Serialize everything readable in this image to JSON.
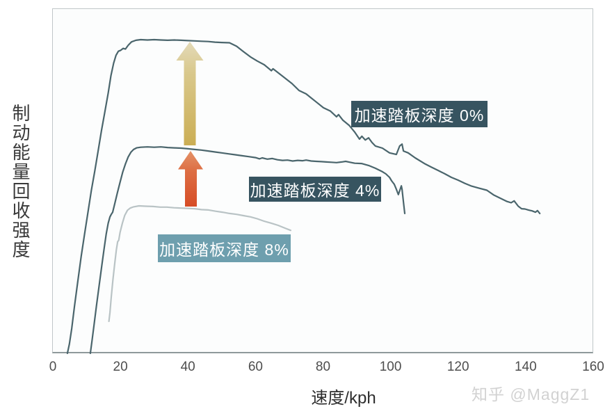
{
  "watermark": "知乎 @MaggZ1",
  "colors": {
    "curve_dark": "#4a656c",
    "curve_light": "#b9c3c5",
    "annotation_dark_bg": "#375460",
    "annotation_light_bg": "#6e9fae",
    "annotation_text": "#ffffff",
    "gold_arrow_top": "#e3dab8",
    "gold_arrow_bottom": "#cbae54",
    "orange_arrow_top": "#e49268",
    "orange_arrow_bottom": "#d64c26",
    "plot_border": "#c0c6c8",
    "axis_line": "#8f999b",
    "tick_text": "#4e4e4e",
    "axis_label_text": "#3a3a3a",
    "watermark_text": "#d2d2d2"
  },
  "chart_data": {
    "type": "line",
    "title": "",
    "xlabel": "速度/kph",
    "ylabel": "制动能量回收强度",
    "xlim": [
      0,
      160
    ],
    "x_ticks": [
      0,
      20,
      40,
      60,
      80,
      100,
      120,
      140,
      160
    ],
    "y_axis_note": "unlabeled relative intensity, 0-100",
    "grid": false,
    "legend_position": "inline annotation boxes on plot",
    "annotations": [
      {
        "label": "加速踏板深度 0%",
        "series": "pedal-0"
      },
      {
        "label": "加速踏板深度 4%",
        "series": "pedal-4"
      },
      {
        "label": "加速踏板深度 8%",
        "series": "pedal-8"
      }
    ],
    "arrows": [
      {
        "name": "gold-up-arrow",
        "from_series": "pedal-4",
        "to_series": "pedal-0",
        "at_speed_kph": 40
      },
      {
        "name": "orange-up-arrow",
        "from_series": "pedal-8",
        "to_series": "pedal-4",
        "at_speed_kph": 41
      }
    ],
    "series": [
      {
        "id": "pedal-0",
        "name": "加速踏板深度 0%",
        "color": "#4a656c",
        "points": [
          [
            4.3,
            0
          ],
          [
            4.9,
            3
          ],
          [
            5.6,
            8
          ],
          [
            6.4,
            15
          ],
          [
            7.4,
            23
          ],
          [
            8.4,
            31
          ],
          [
            9.4,
            38
          ],
          [
            10.4,
            45
          ],
          [
            11.4,
            52
          ],
          [
            12.4,
            58
          ],
          [
            13.4,
            64.5
          ],
          [
            14.4,
            71
          ],
          [
            15.4,
            77
          ],
          [
            16.4,
            83
          ],
          [
            17.2,
            88.5
          ],
          [
            18,
            92.5
          ],
          [
            18.7,
            95
          ],
          [
            19.4,
            96.3
          ],
          [
            20.1,
            96.6
          ],
          [
            20.8,
            97.2
          ],
          [
            21.5,
            97
          ],
          [
            22.3,
            98.2
          ],
          [
            23.3,
            99.3
          ],
          [
            24.6,
            99.8
          ],
          [
            26,
            100
          ],
          [
            28,
            99.9
          ],
          [
            30,
            100
          ],
          [
            32,
            99.9
          ],
          [
            34,
            99.8
          ],
          [
            36,
            99.9
          ],
          [
            38,
            99.8
          ],
          [
            40,
            99.7
          ],
          [
            42,
            99.6
          ],
          [
            44,
            99.5
          ],
          [
            46,
            99.4
          ],
          [
            48,
            99.2
          ],
          [
            50,
            99.1
          ],
          [
            52.3,
            99
          ],
          [
            54.4,
            97.9
          ],
          [
            56.4,
            96.2
          ],
          [
            58.5,
            94.5
          ],
          [
            60.5,
            93.2
          ],
          [
            62.6,
            92
          ],
          [
            64.7,
            90.1
          ],
          [
            65.2,
            90.7
          ],
          [
            67.7,
            88.6
          ],
          [
            70.8,
            86
          ],
          [
            72.9,
            83.8
          ],
          [
            75,
            82.7
          ],
          [
            76.5,
            81.4
          ],
          [
            78,
            80.1
          ],
          [
            80.1,
            78.3
          ],
          [
            82.2,
            77.2
          ],
          [
            84,
            75.4
          ],
          [
            84.6,
            76.1
          ],
          [
            85.9,
            74.3
          ],
          [
            87.7,
            72.7
          ],
          [
            89.4,
            70.5
          ],
          [
            90.8,
            68.3
          ],
          [
            91.5,
            69.2
          ],
          [
            92.5,
            68
          ],
          [
            93.5,
            68.7
          ],
          [
            94.5,
            67.2
          ],
          [
            95.5,
            66.1
          ],
          [
            97.6,
            65.4
          ],
          [
            99.7,
            63.9
          ],
          [
            101.7,
            63.4
          ],
          [
            102.7,
            66.1
          ],
          [
            103.4,
            66.7
          ],
          [
            103.8,
            64.5
          ],
          [
            105.2,
            63.9
          ],
          [
            107.3,
            62.3
          ],
          [
            110,
            60.5
          ],
          [
            112,
            59.4
          ],
          [
            114.1,
            58.3
          ],
          [
            116.1,
            57.2
          ],
          [
            118,
            56.1
          ],
          [
            120,
            55.2
          ],
          [
            122,
            54.2
          ],
          [
            124,
            53.3
          ],
          [
            126,
            52.7
          ],
          [
            128.5,
            52
          ],
          [
            130.5,
            50.5
          ],
          [
            132.6,
            49.4
          ],
          [
            134.5,
            48.4
          ],
          [
            135.7,
            48
          ],
          [
            136.6,
            48.6
          ],
          [
            137.8,
            46.9
          ],
          [
            138.8,
            46.1
          ],
          [
            139.8,
            46
          ],
          [
            140.8,
            45.7
          ],
          [
            141.9,
            45.4
          ],
          [
            142.9,
            45
          ],
          [
            143.5,
            45.5
          ],
          [
            144.2,
            44.6
          ]
        ]
      },
      {
        "id": "pedal-4",
        "name": "加速踏板深度 4%",
        "color": "#4a656c",
        "points": [
          [
            11.1,
            0
          ],
          [
            11.6,
            4
          ],
          [
            12.2,
            9
          ],
          [
            12.9,
            15
          ],
          [
            13.7,
            21.5
          ],
          [
            14.5,
            28
          ],
          [
            15.2,
            33.5
          ],
          [
            15.8,
            38
          ],
          [
            16.4,
            41.5
          ],
          [
            16.9,
            43.5
          ],
          [
            17.3,
            44.3
          ],
          [
            17.7,
            45
          ],
          [
            18.3,
            47.6
          ],
          [
            19.1,
            51.1
          ],
          [
            19.9,
            54.5
          ],
          [
            20.7,
            57.8
          ],
          [
            21.5,
            60.4
          ],
          [
            22.3,
            62.6
          ],
          [
            23.1,
            64.1
          ],
          [
            23.9,
            65
          ],
          [
            24.8,
            65.5
          ],
          [
            26,
            65.7
          ],
          [
            28,
            65.8
          ],
          [
            30,
            65.7
          ],
          [
            32,
            65.8
          ],
          [
            34,
            65.6
          ],
          [
            36,
            65.5
          ],
          [
            38,
            65.4
          ],
          [
            40,
            65.2
          ],
          [
            42,
            65
          ],
          [
            44,
            64.8
          ],
          [
            46,
            64.5
          ],
          [
            48,
            64.2
          ],
          [
            50,
            63.9
          ],
          [
            52,
            63.6
          ],
          [
            54,
            63.3
          ],
          [
            56,
            63
          ],
          [
            58,
            62.7
          ],
          [
            60,
            62.4
          ],
          [
            61.2,
            62
          ],
          [
            62,
            62.3
          ],
          [
            63.5,
            61.9
          ],
          [
            65,
            62.1
          ],
          [
            66.5,
            61.7
          ],
          [
            68,
            61.5
          ],
          [
            69.5,
            61.6
          ],
          [
            71,
            61.3
          ],
          [
            72.5,
            61.5
          ],
          [
            74,
            61.4
          ],
          [
            75,
            61.6
          ],
          [
            76.5,
            61.3
          ],
          [
            78,
            61.2
          ],
          [
            79.5,
            61.1
          ],
          [
            81,
            61
          ],
          [
            82.5,
            60.9
          ],
          [
            84,
            60.8
          ],
          [
            85.5,
            61
          ],
          [
            86.7,
            61.2
          ],
          [
            88,
            60.9
          ],
          [
            89.4,
            60.6
          ],
          [
            91.4,
            60.5
          ],
          [
            93.5,
            59.9
          ],
          [
            95.5,
            59
          ],
          [
            97.6,
            57.9
          ],
          [
            98.6,
            57.2
          ],
          [
            99.7,
            56.1
          ],
          [
            100.3,
            55
          ],
          [
            101.1,
            53.9
          ],
          [
            101.7,
            52.3
          ],
          [
            102.1,
            51.2
          ],
          [
            102.3,
            50.6
          ],
          [
            103.2,
            53.4
          ],
          [
            103.4,
            52.3
          ],
          [
            103.8,
            48.3
          ],
          [
            104.2,
            44.6
          ]
        ]
      },
      {
        "id": "pedal-8",
        "name": "加速踏板深度 8%",
        "color": "#b9c3c5",
        "points": [
          [
            16.6,
            10.2
          ],
          [
            16.9,
            13
          ],
          [
            17.3,
            18
          ],
          [
            17.8,
            23.5
          ],
          [
            18.3,
            28.5
          ],
          [
            18.8,
            33
          ],
          [
            19.2,
            35.6
          ],
          [
            19.5,
            36
          ],
          [
            19.9,
            38.5
          ],
          [
            20.6,
            41.5
          ],
          [
            21.3,
            44
          ],
          [
            22.1,
            45.6
          ],
          [
            22.9,
            46.3
          ],
          [
            23.9,
            46.7
          ],
          [
            25.5,
            47
          ],
          [
            27.5,
            46.9
          ],
          [
            29.7,
            46.8
          ],
          [
            31.8,
            46.6
          ],
          [
            33.8,
            46.6
          ],
          [
            35.8,
            46.4
          ],
          [
            37.9,
            46.3
          ],
          [
            40,
            46.2
          ],
          [
            42,
            46.1
          ],
          [
            44,
            45.8
          ],
          [
            46.1,
            45.7
          ],
          [
            48.2,
            45.3
          ],
          [
            50.2,
            45
          ],
          [
            52.3,
            44.6
          ],
          [
            54.4,
            44.3
          ],
          [
            56.4,
            43.9
          ],
          [
            58.5,
            43.5
          ],
          [
            60.5,
            42.9
          ],
          [
            62.6,
            42.1
          ],
          [
            64.6,
            41.5
          ],
          [
            66.7,
            40.8
          ],
          [
            68.8,
            39.9
          ],
          [
            70.4,
            39.2
          ]
        ]
      }
    ]
  }
}
